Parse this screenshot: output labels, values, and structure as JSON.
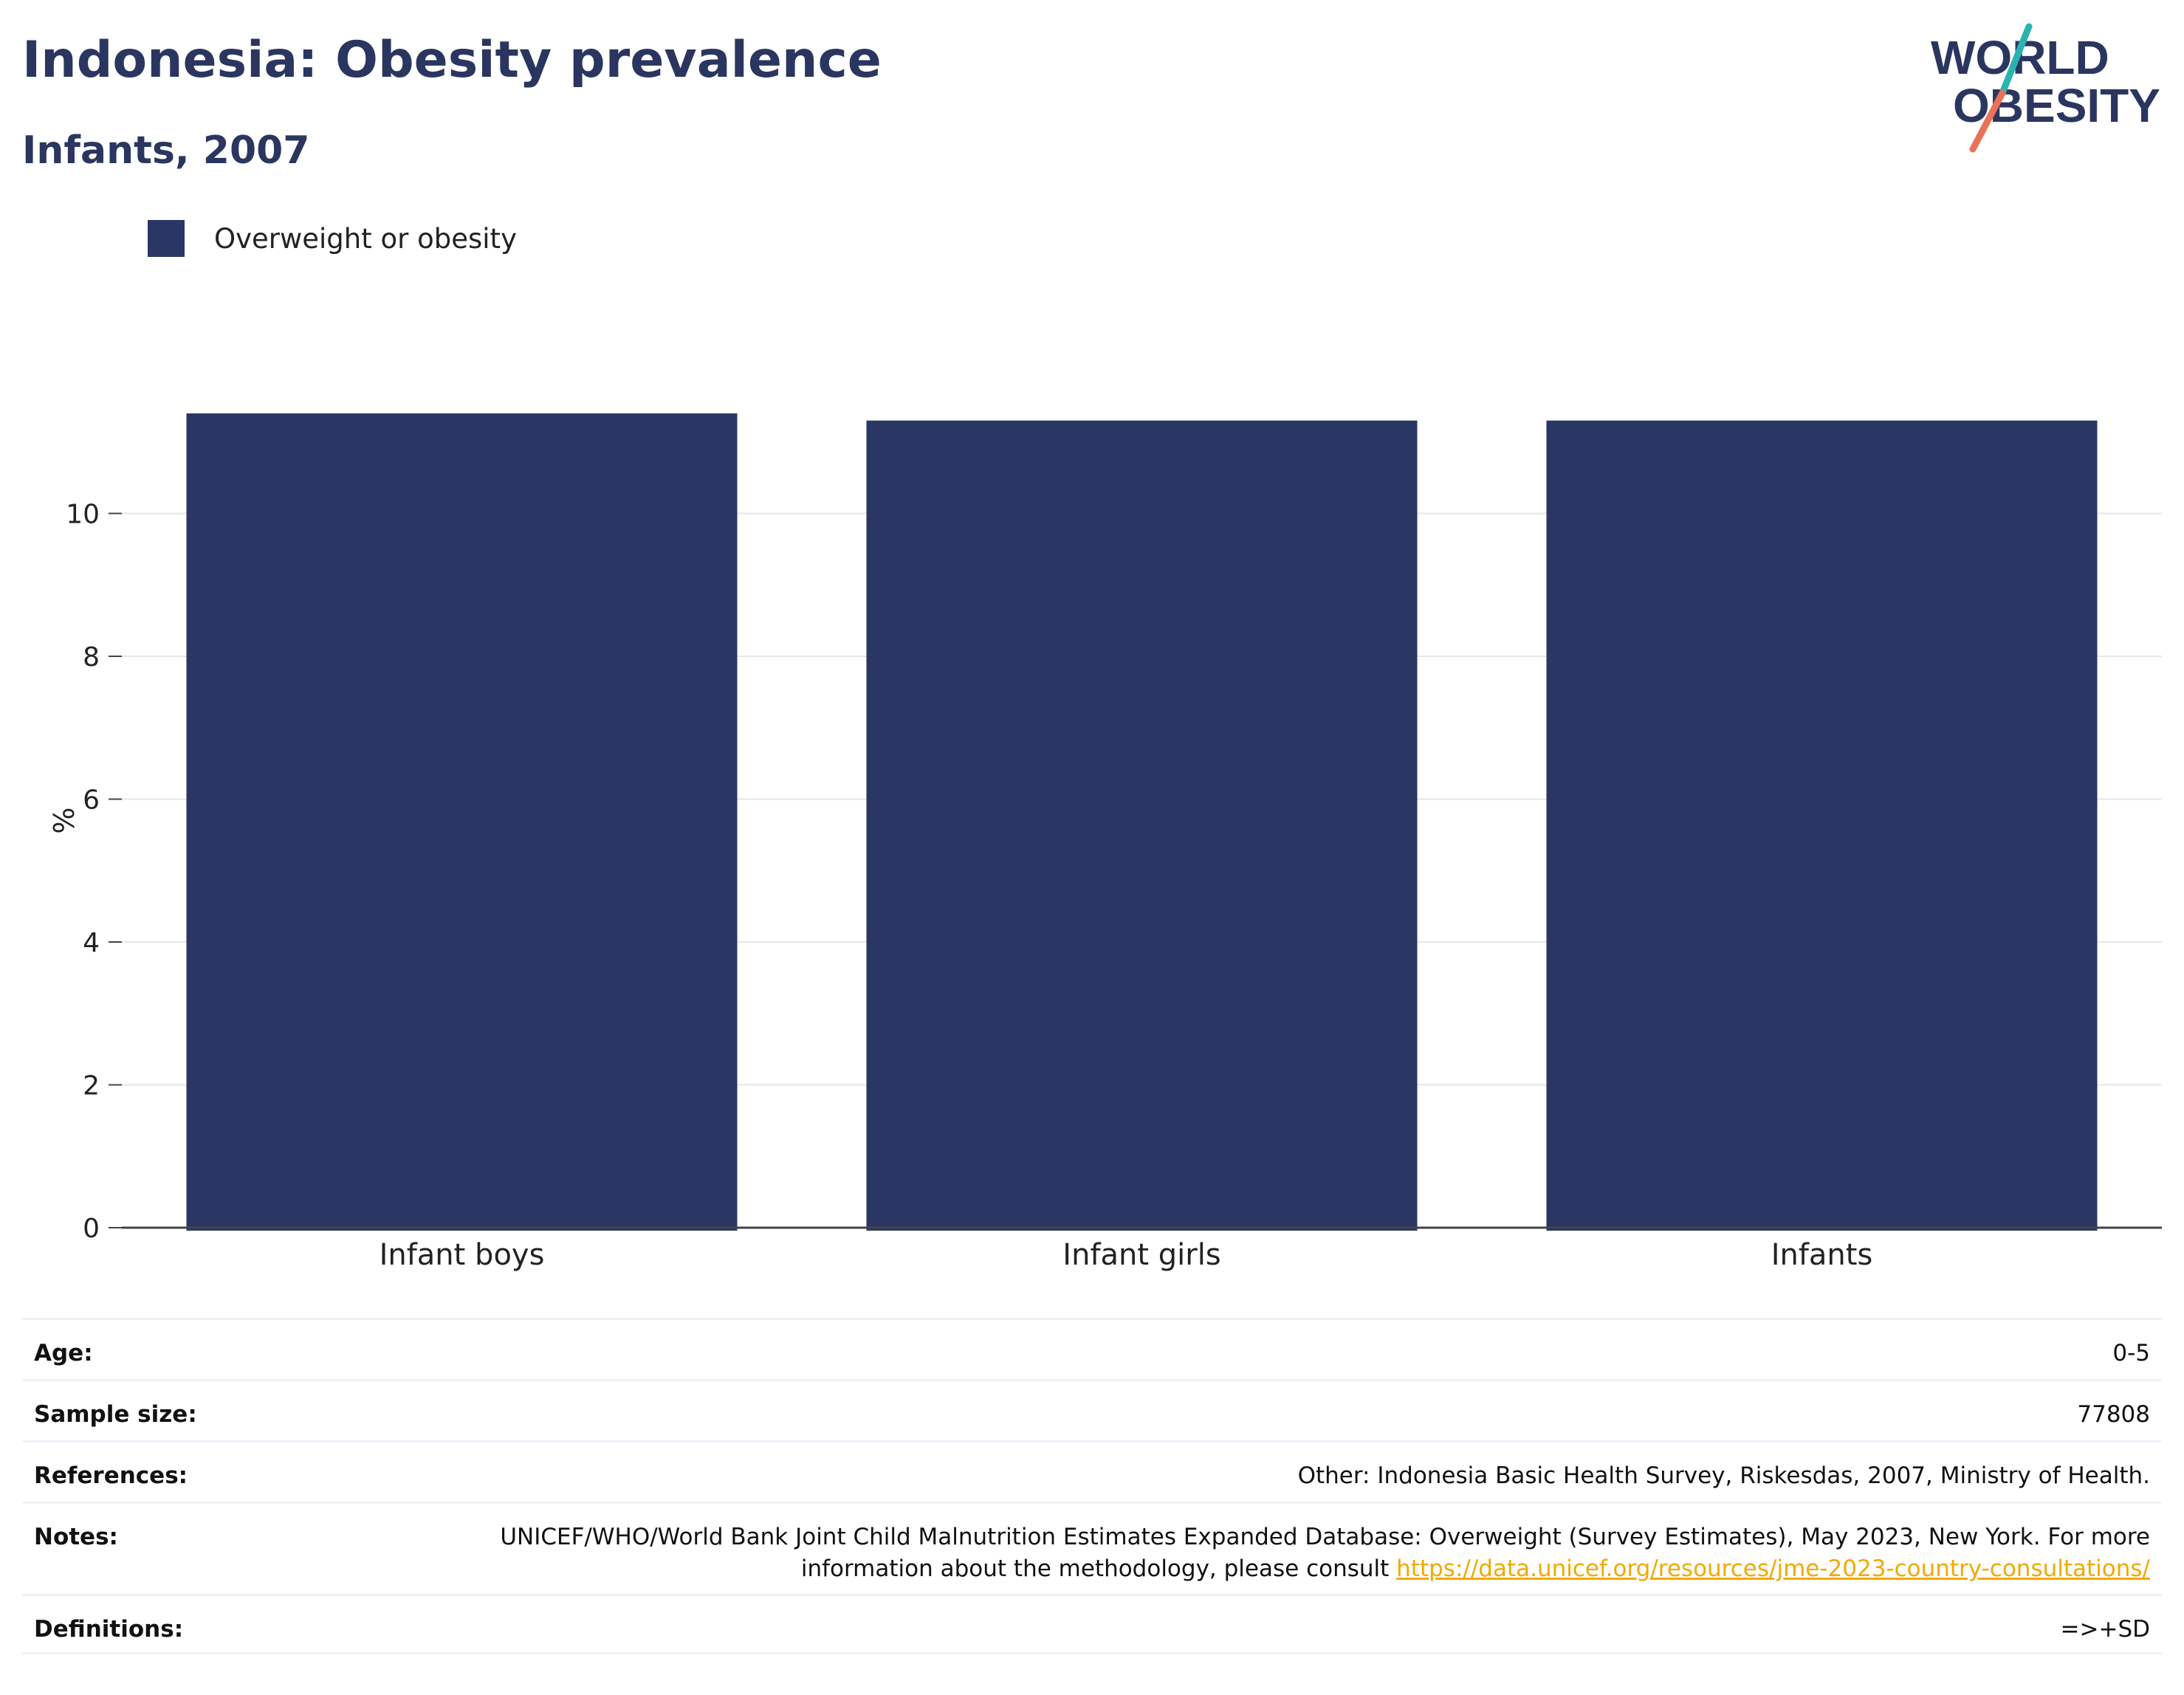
{
  "title": "Indonesia: Obesity prevalence",
  "subtitle": "Infants, 2007",
  "logo": {
    "line1": "WORLD",
    "line2": "OBESITY",
    "text_color": "#2a365f",
    "accent_teal": "#2ab3b1",
    "accent_coral": "#e8735a"
  },
  "colors": {
    "bar": "#2a3663",
    "grid": "#e6e6e6",
    "axis": "#444444"
  },
  "chart_data": {
    "type": "bar",
    "categories": [
      "Infant boys",
      "Infant girls",
      "Infants"
    ],
    "series": [
      {
        "name": "Overweight or obesity",
        "values": [
          11.4,
          11.3,
          11.3
        ]
      }
    ],
    "ylabel": "%",
    "ylim": [
      0,
      11.4
    ],
    "yticks": [
      0,
      2,
      4,
      6,
      8,
      10
    ],
    "grid": true,
    "legend_position": "top-left"
  },
  "meta": {
    "age": {
      "label": "Age:",
      "value": "0-5"
    },
    "sample_size": {
      "label": "Sample size:",
      "value": "77808"
    },
    "references": {
      "label": "References:",
      "value": "Other: Indonesia Basic Health Survey, Riskesdas, 2007, Ministry of Health."
    },
    "notes": {
      "label": "Notes:",
      "text": "UNICEF/WHO/World Bank Joint Child Malnutrition Estimates Expanded Database: Overweight (Survey Estimates), May 2023, New York. For more information about the methodology, please consult ",
      "link": "https://data.unicef.org/resources/jme-2023-country-consultations/"
    },
    "definitions": {
      "label": "Definitions:",
      "value": "=>+SD"
    }
  }
}
